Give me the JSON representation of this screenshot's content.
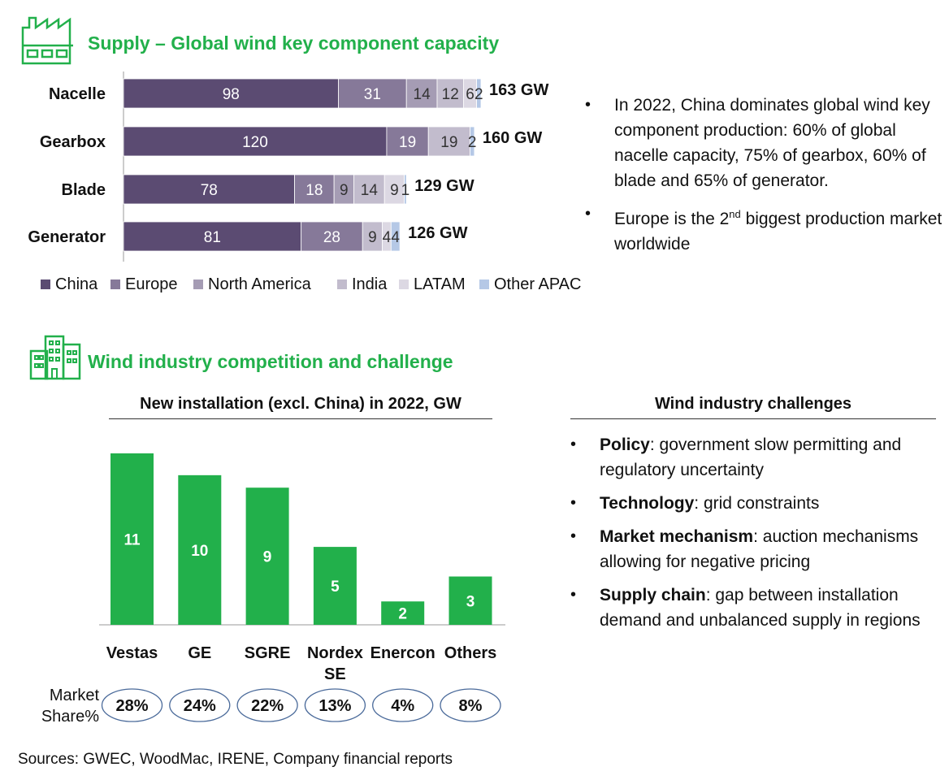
{
  "section1": {
    "title": "Supply – Global wind key component capacity",
    "icon": "factory-icon"
  },
  "section2": {
    "title": "Wind industry competition and challenge",
    "icon": "buildings-icon"
  },
  "colors": {
    "accent_green": "#22b04b",
    "China": "#5b4b72",
    "Europe": "#867999",
    "North America": "#a59cb4",
    "India": "#c2bccd",
    "LATAM": "#dcd8e3",
    "Other APAC": "#b5c8e6",
    "bar2": "#22b04b"
  },
  "chart_data": [
    {
      "type": "bar",
      "orientation": "horizontal",
      "stacked": true,
      "title": "",
      "categories": [
        "Nacelle",
        "Gearbox",
        "Blade",
        "Generator"
      ],
      "series": [
        {
          "name": "China",
          "values": [
            98,
            120,
            78,
            81
          ]
        },
        {
          "name": "Europe",
          "values": [
            31,
            19,
            18,
            28
          ]
        },
        {
          "name": "North America",
          "values": [
            14,
            0,
            9,
            0
          ]
        },
        {
          "name": "India",
          "values": [
            12,
            19,
            14,
            9
          ]
        },
        {
          "name": "LATAM",
          "values": [
            6,
            0,
            9,
            4
          ]
        },
        {
          "name": "Other APAC",
          "values": [
            2,
            2,
            1,
            4
          ]
        }
      ],
      "data_labels": [
        [
          "98",
          "31",
          "14",
          "12",
          "6",
          "2"
        ],
        [
          "120",
          "19",
          "",
          "19",
          "",
          "2"
        ],
        [
          "78",
          "18",
          "9",
          "14",
          "9",
          "1"
        ],
        [
          "81",
          "28",
          "",
          "9",
          "4",
          "4"
        ]
      ],
      "totals": [
        "163 GW",
        "160 GW",
        "129 GW",
        "126 GW"
      ],
      "legend_position": "bottom",
      "xlim": [
        0,
        163
      ]
    },
    {
      "type": "bar",
      "title": "New installation (excl. China) in 2022, GW",
      "categories": [
        "Vestas",
        "GE",
        "SGRE",
        "Nordex SE",
        "Enercon",
        "Others"
      ],
      "values": [
        11,
        10,
        9,
        5,
        2,
        3
      ],
      "bar_heights_reference": [
        11,
        9.6,
        8.8,
        5,
        1.5,
        3.1
      ],
      "market_share_label": "Market Share%",
      "market_share": [
        "28%",
        "24%",
        "22%",
        "13%",
        "4%",
        "8%"
      ],
      "ylim": [
        0,
        11.5
      ]
    }
  ],
  "top_bullets": [
    {
      "text": "In 2022, China dominates global wind key component production: 60% of global nacelle capacity, 75% of gearbox, 60% of blade and 65% of generator."
    },
    {
      "pre": "Europe is the 2",
      "sup": "nd",
      "post": " biggest production market worldwide"
    }
  ],
  "challenges": {
    "title": "Wind industry challenges",
    "items": [
      {
        "bold": "Policy",
        "rest": ": government slow permitting and regulatory uncertainty"
      },
      {
        "bold": "Technology",
        "rest": ": grid constraints"
      },
      {
        "bold": "Market mechanism",
        "rest": ": auction mechanisms allowing for negative pricing"
      },
      {
        "bold": "Supply chain",
        "rest": ": gap between installation demand and unbalanced supply in regions"
      }
    ]
  },
  "source": "Sources: GWEC, WoodMac, IRENE, Company financial reports"
}
